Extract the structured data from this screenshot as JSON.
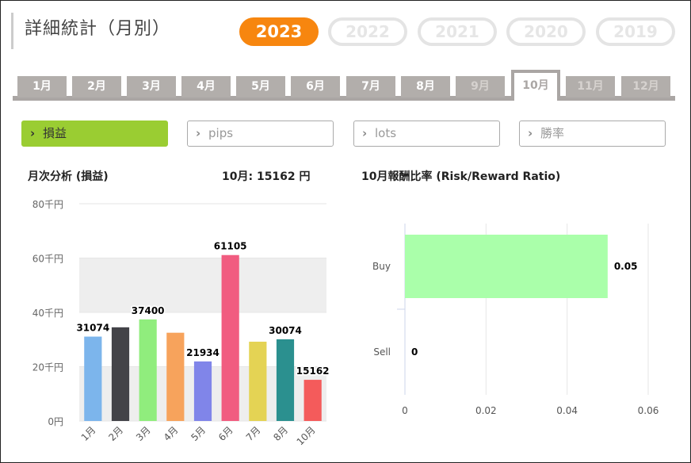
{
  "header": {
    "title": "詳細統計（月別）"
  },
  "years": [
    "2023",
    "2022",
    "2021",
    "2020",
    "2019"
  ],
  "months": [
    "1月",
    "2月",
    "3月",
    "4月",
    "5月",
    "6月",
    "7月",
    "8月",
    "9月",
    "10月",
    "11月",
    "12月"
  ],
  "metrics": [
    "損益",
    "pips",
    "lots",
    "勝率"
  ],
  "colors": {
    "accent": "#f7860f",
    "metric_active": "#9acd32",
    "tab": "#b2aeab"
  },
  "left_panel": {
    "title": "月次分析 (損益)",
    "summary": "10月:  15162 円"
  },
  "right_panel": {
    "title": "10月報酬比率 (Risk/Reward Ratio)"
  },
  "chart_data": [
    {
      "type": "bar",
      "categories": [
        "1月",
        "2月",
        "3月",
        "4月",
        "5月",
        "6月",
        "7月",
        "8月",
        "10月"
      ],
      "values": [
        31074,
        34500,
        37400,
        32500,
        21934,
        61105,
        29200,
        30074,
        15162
      ],
      "data_labels": [
        "31074",
        "",
        "37400",
        "",
        "21934",
        "61105",
        "",
        "30074",
        "15162"
      ],
      "colors": [
        "#7cb5ec",
        "#434348",
        "#90ed7d",
        "#f7a35c",
        "#8085e9",
        "#f15c80",
        "#e4d354",
        "#2b908f",
        "#f45b5b"
      ],
      "ylim": [
        0,
        80000
      ],
      "yticks": [
        "0円",
        "20千円",
        "40千円",
        "60千円",
        "80千円"
      ],
      "ytick_values": [
        0,
        20000,
        40000,
        60000,
        80000
      ],
      "grid": true
    },
    {
      "type": "bar",
      "orientation": "horizontal",
      "categories": [
        "Buy",
        "Sell"
      ],
      "values": [
        0.05,
        0
      ],
      "data_labels": [
        "0.05",
        "0"
      ],
      "color": "#aaffaa",
      "xlim": [
        0,
        0.06
      ],
      "xticks": [
        "0",
        "0.02",
        "0.04",
        "0.06"
      ],
      "xtick_values": [
        0,
        0.02,
        0.04,
        0.06
      ],
      "grid": true
    }
  ]
}
